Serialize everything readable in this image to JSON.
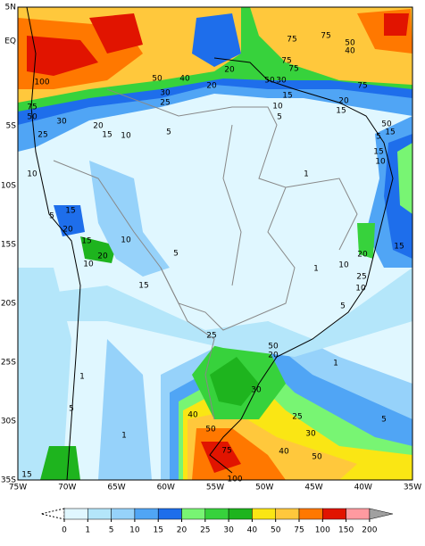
{
  "map": {
    "lon_labels": [
      "75W",
      "70W",
      "65W",
      "60W",
      "55W",
      "50W",
      "45W",
      "40W",
      "35W"
    ],
    "lat_labels": [
      "5N",
      "EQ",
      "5S",
      "10S",
      "15S",
      "20S",
      "25S",
      "30S",
      "35S"
    ],
    "colorbar": {
      "levels": [
        0,
        1,
        5,
        10,
        15,
        20,
        25,
        30,
        40,
        50,
        75,
        100,
        150,
        200
      ],
      "colors": [
        "#e0f7ff",
        "#b4e6fa",
        "#96d2fa",
        "#50a5f5",
        "#1e6eeb",
        "#78f573",
        "#37d23c",
        "#1eb41e",
        "#fae614",
        "#ffc83c",
        "#ff7800",
        "#e11400",
        "#ff9aa0"
      ],
      "under_color": "#ffffff",
      "over_color": "#a0a0a0"
    },
    "contour_labels": [
      "75",
      "50",
      "40",
      "75",
      "75",
      "75",
      "50",
      "30",
      "20",
      "40",
      "50",
      "100",
      "75",
      "50",
      "30",
      "25",
      "30",
      "25",
      "20",
      "75",
      "15",
      "10",
      "5",
      "20",
      "15",
      "50",
      "15",
      "5",
      "20",
      "15",
      "10",
      "5",
      "15",
      "10",
      "1",
      "10",
      "5",
      "15",
      "20",
      "15",
      "20",
      "10",
      "10",
      "5",
      "15",
      "1",
      "10",
      "20",
      "25",
      "10",
      "5",
      "15",
      "25",
      "20",
      "50",
      "1",
      "1",
      "30",
      "5",
      "25",
      "30",
      "5",
      "40",
      "50",
      "75",
      "40",
      "50",
      "1",
      "15",
      "100"
    ]
  }
}
